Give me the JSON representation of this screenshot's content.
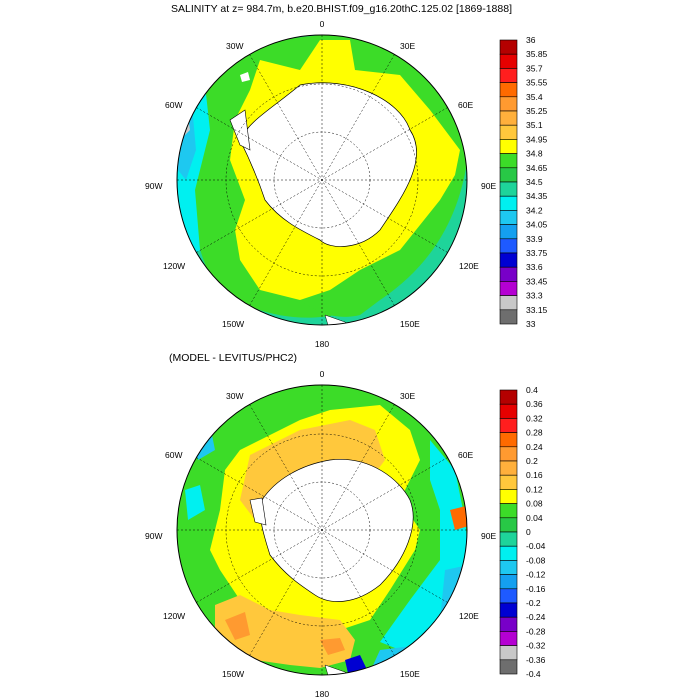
{
  "panels": [
    {
      "title": "SALINITY at z= 984.7m, b.e20.BHIST.f09_g16.20thC.125.02 [1869-1888]",
      "lon_labels": [
        "0",
        "30E",
        "60E",
        "90E",
        "120E",
        "150E",
        "180",
        "150W",
        "120W",
        "90W",
        "60W",
        "30W"
      ],
      "colorbar": {
        "labels": [
          "36",
          "35.85",
          "35.7",
          "35.55",
          "35.4",
          "35.25",
          "35.1",
          "34.95",
          "34.8",
          "34.65",
          "34.5",
          "34.35",
          "34.2",
          "34.05",
          "33.9",
          "33.75",
          "33.6",
          "33.45",
          "33.3",
          "33.15",
          "33"
        ],
        "colors": [
          "#b40000",
          "#e60000",
          "#ff1e1e",
          "#ff6a00",
          "#ff9a30",
          "#ffb03c",
          "#ffc83c",
          "#ffff00",
          "#3cdc28",
          "#28c846",
          "#1ed49a",
          "#00f0f0",
          "#1ec8f0",
          "#14a0f0",
          "#1e5aff",
          "#0000d2",
          "#7800c8",
          "#b400d2",
          "#c8c8c8",
          "#6e6e6e"
        ]
      }
    },
    {
      "title": "(MODEL - LEVITUS/PHC2)",
      "lon_labels": [
        "0",
        "30E",
        "60E",
        "90E",
        "120E",
        "150E",
        "180",
        "150W",
        "120W",
        "90W",
        "60W",
        "30W"
      ],
      "colorbar": {
        "labels": [
          "0.4",
          "0.36",
          "0.32",
          "0.28",
          "0.24",
          "0.2",
          "0.16",
          "0.12",
          "0.08",
          "0.04",
          "0",
          "-0.04",
          "-0.08",
          "-0.12",
          "-0.16",
          "-0.2",
          "-0.24",
          "-0.28",
          "-0.32",
          "-0.36",
          "-0.4"
        ],
        "colors": [
          "#b40000",
          "#e60000",
          "#ff1e1e",
          "#ff6a00",
          "#ff9a30",
          "#ffb03c",
          "#ffc83c",
          "#ffff00",
          "#3cdc28",
          "#28c846",
          "#1ed49a",
          "#00f0f0",
          "#1ec8f0",
          "#14a0f0",
          "#1e5aff",
          "#0000d2",
          "#7800c8",
          "#b400d2",
          "#c8c8c8",
          "#6e6e6e"
        ]
      }
    }
  ]
}
